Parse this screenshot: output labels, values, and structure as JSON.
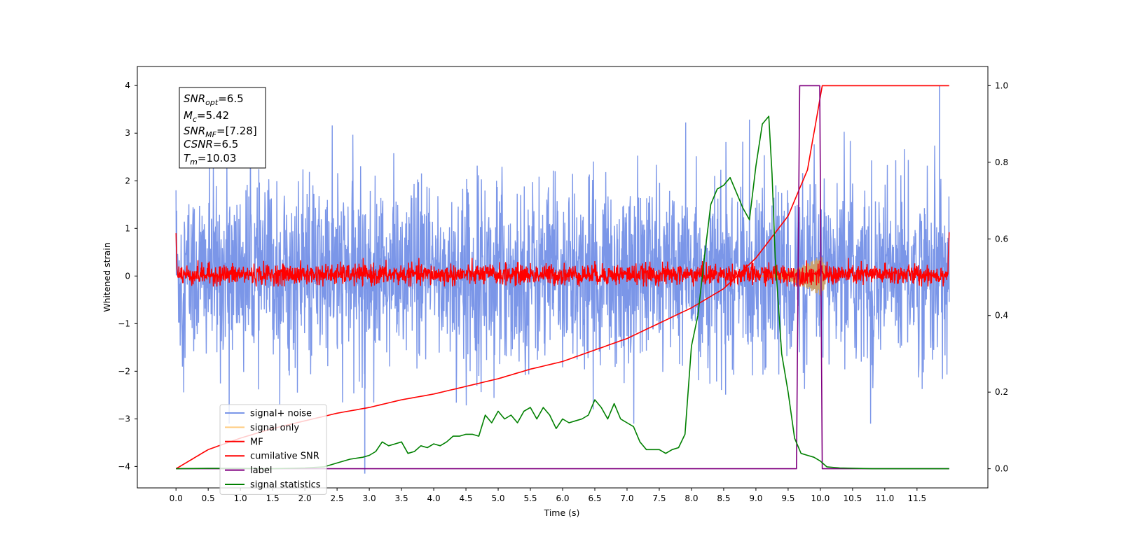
{
  "chart_data": {
    "type": "line",
    "xlabel": "Time (s)",
    "ylabel": "Whitened strain",
    "xlim": [
      -0.6,
      12.6
    ],
    "ylim_left": [
      -4.45,
      4.4
    ],
    "ylim_right": [
      -0.05,
      1.05
    ],
    "x_ticks": [
      "0.0",
      "0.5",
      "1.0",
      "1.5",
      "2.0",
      "2.5",
      "3.0",
      "3.5",
      "4.0",
      "4.5",
      "5.0",
      "5.5",
      "6.0",
      "6.5",
      "7.0",
      "7.5",
      "8.0",
      "8.5",
      "9.0",
      "9.5",
      "10.0",
      "10.5",
      "11.0",
      "11.5"
    ],
    "y_ticks_left": [
      "4",
      "3",
      "2",
      "1",
      "0",
      "−1",
      "−2",
      "−3",
      "−4"
    ],
    "y_ticks_right": [
      "1.0",
      "0.8",
      "0.6",
      "0.4",
      "0.2",
      "0.0"
    ],
    "annotation": {
      "snr_opt": {
        "base": "SNR",
        "sub": "opt",
        "value": "=6.5"
      },
      "mc": {
        "base": "M",
        "sub": "c",
        "value": "=5.42"
      },
      "snr_mf": {
        "base": "SNR",
        "sub": "MF",
        "value": "=[7.28]"
      },
      "csnr": {
        "base": "CSNR",
        "sub": "",
        "value": "=6.5"
      },
      "tm": {
        "base": "T",
        "sub": "m",
        "value": "=10.03"
      }
    },
    "series": [
      {
        "name": "signal+ noise",
        "color": "#7b96e8",
        "axis": "left",
        "description_values": "noise band ~[-3.0, 3.6] across 0-12 s"
      },
      {
        "name": "signal only",
        "color": "#ffcc80",
        "axis": "left",
        "chirp_end": 10.03,
        "peak_amplitude": 0.45
      },
      {
        "name": "MF",
        "color": "#ff0000",
        "axis": "left",
        "band": [
          -0.2,
          0.25
        ]
      },
      {
        "name": "cumilative SNR",
        "color": "#ff0000",
        "axis": "right",
        "x": [
          0.0,
          0.5,
          1.0,
          1.5,
          2.0,
          2.5,
          3.0,
          3.5,
          4.0,
          4.5,
          5.0,
          5.5,
          6.0,
          6.5,
          7.0,
          7.5,
          8.0,
          8.5,
          9.0,
          9.5,
          9.8,
          10.03,
          12.0
        ],
        "y": [
          0.0,
          0.05,
          0.08,
          0.105,
          0.125,
          0.145,
          0.16,
          0.18,
          0.195,
          0.215,
          0.235,
          0.26,
          0.28,
          0.31,
          0.34,
          0.38,
          0.42,
          0.47,
          0.55,
          0.66,
          0.78,
          1.0,
          1.0
        ]
      },
      {
        "name": "label",
        "color": "#800080",
        "axis": "right",
        "x": [
          0.0,
          9.63,
          9.68,
          9.99,
          10.03,
          12.0
        ],
        "y": [
          0.0,
          0.0,
          1.0,
          1.0,
          0.0,
          0.0
        ]
      },
      {
        "name": "signal statistics",
        "color": "#008000",
        "axis": "right",
        "x": [
          0.0,
          0.5,
          1.0,
          1.5,
          2.0,
          2.3,
          2.5,
          2.7,
          2.9,
          3.0,
          3.1,
          3.2,
          3.3,
          3.4,
          3.5,
          3.6,
          3.7,
          3.8,
          3.9,
          4.0,
          4.1,
          4.2,
          4.3,
          4.4,
          4.5,
          4.6,
          4.7,
          4.8,
          4.9,
          5.0,
          5.1,
          5.2,
          5.3,
          5.4,
          5.5,
          5.6,
          5.7,
          5.8,
          5.9,
          6.0,
          6.1,
          6.2,
          6.3,
          6.4,
          6.5,
          6.6,
          6.7,
          6.8,
          6.9,
          7.0,
          7.1,
          7.2,
          7.3,
          7.4,
          7.5,
          7.6,
          7.7,
          7.8,
          7.9,
          8.0,
          8.1,
          8.2,
          8.3,
          8.4,
          8.5,
          8.6,
          8.7,
          8.8,
          8.9,
          9.0,
          9.1,
          9.2,
          9.25,
          9.3,
          9.4,
          9.5,
          9.6,
          9.7,
          9.8,
          9.9,
          10.0,
          10.1,
          10.3,
          10.8,
          11.5,
          12.0
        ],
        "y": [
          0.0,
          0.001,
          0.001,
          0.0,
          0.002,
          0.005,
          0.015,
          0.025,
          0.03,
          0.035,
          0.045,
          0.07,
          0.06,
          0.065,
          0.07,
          0.04,
          0.045,
          0.06,
          0.055,
          0.065,
          0.06,
          0.07,
          0.085,
          0.085,
          0.09,
          0.09,
          0.085,
          0.14,
          0.12,
          0.15,
          0.13,
          0.14,
          0.12,
          0.15,
          0.16,
          0.13,
          0.16,
          0.14,
          0.105,
          0.13,
          0.12,
          0.125,
          0.13,
          0.14,
          0.18,
          0.16,
          0.13,
          0.17,
          0.13,
          0.12,
          0.11,
          0.07,
          0.05,
          0.05,
          0.05,
          0.04,
          0.05,
          0.055,
          0.09,
          0.32,
          0.4,
          0.55,
          0.69,
          0.73,
          0.74,
          0.76,
          0.72,
          0.68,
          0.65,
          0.79,
          0.9,
          0.92,
          0.77,
          0.55,
          0.3,
          0.2,
          0.08,
          0.04,
          0.035,
          0.03,
          0.02,
          0.005,
          0.002,
          0.0,
          0.0,
          0.0
        ]
      }
    ],
    "legend_position": "lower-left",
    "grid": false
  }
}
